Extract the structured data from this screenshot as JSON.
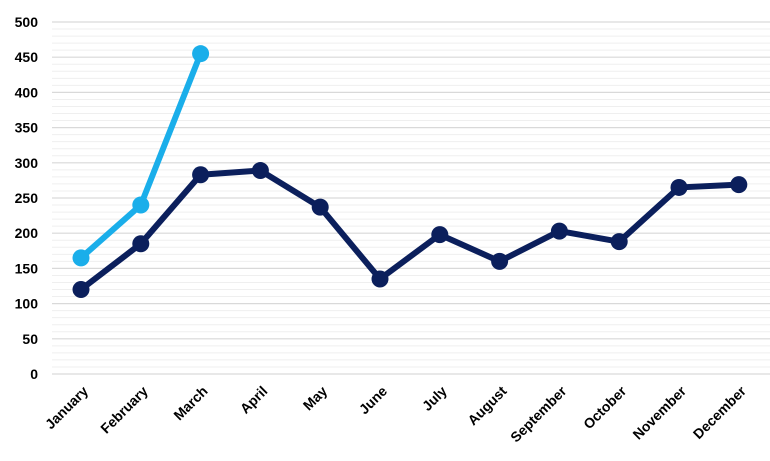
{
  "chart_data": {
    "type": "line",
    "categories": [
      "January",
      "February",
      "March",
      "April",
      "May",
      "June",
      "July",
      "August",
      "September",
      "October",
      "November",
      "December"
    ],
    "series": [
      {
        "values": [
          120,
          185,
          283,
          289,
          237,
          135,
          198,
          160,
          203,
          188,
          265,
          269
        ],
        "color": "#0b1f5c"
      },
      {
        "values": [
          165,
          240,
          455,
          null,
          null,
          null,
          null,
          null,
          null,
          null,
          null,
          null
        ],
        "color": "#1aaeea"
      }
    ],
    "yticks": [
      0,
      50,
      100,
      150,
      200,
      250,
      300,
      350,
      400,
      450,
      500
    ],
    "ylim": [
      0,
      500
    ],
    "title": "",
    "xlabel": "",
    "ylabel": "",
    "grid": true,
    "legend": "none"
  }
}
